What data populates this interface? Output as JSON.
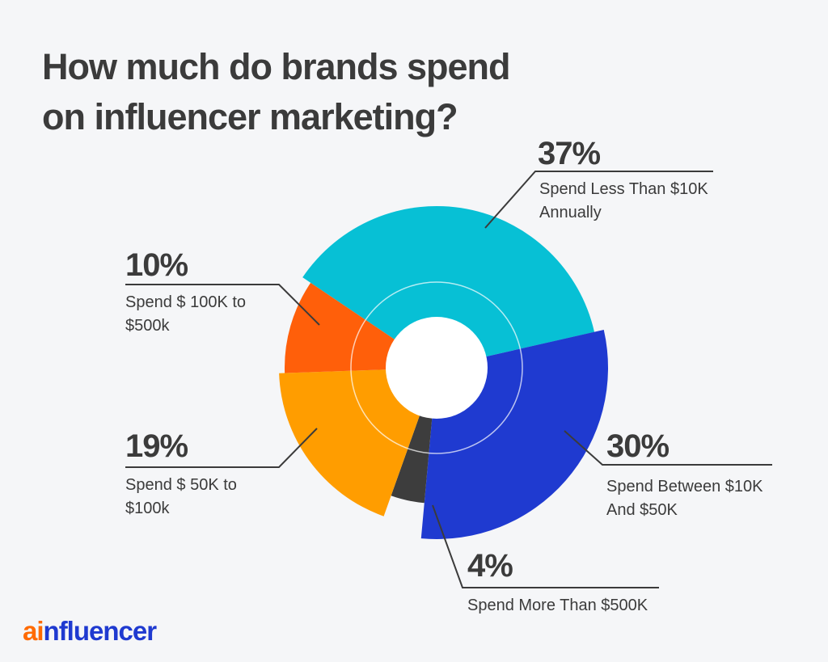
{
  "chart_data": {
    "type": "pie",
    "title": "How much do brands spend on influencer marketing?",
    "categories": [
      "Spend Less Than $10K Annually",
      "Spend Between $10K And $50K",
      "Spend More Than $500K",
      "Spend $ 50K to $100k",
      "Spend $ 100K to $500k"
    ],
    "values": [
      37,
      30,
      4,
      19,
      10
    ],
    "value_labels": [
      "37%",
      "30%",
      "4%",
      "19%",
      "10%"
    ],
    "colors": [
      "#07c0d5",
      "#1f3ad0",
      "#3d3d3d",
      "#ff9d00",
      "#ff5f0a"
    ]
  },
  "logo": {
    "accent": "ai",
    "rest": "nfluencer"
  }
}
